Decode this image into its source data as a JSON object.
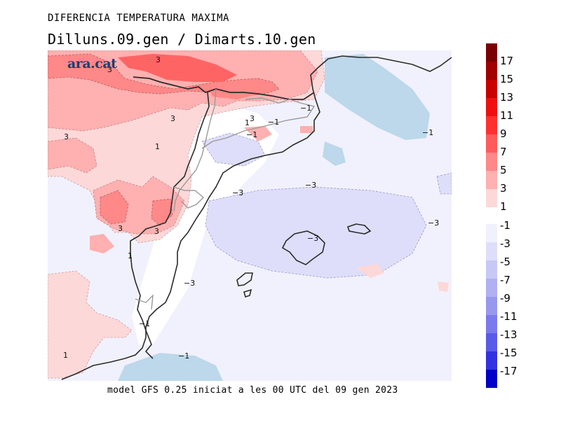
{
  "header": {
    "title": "DIFERENCIA TEMPERATURA MAXIMA",
    "subtitle": "Dilluns.09.gen / Dimarts.10.gen"
  },
  "footer": {
    "text": "model GFS 0.25 iniciat a les 00 UTC del 09 gen 2023"
  },
  "logo": {
    "text": "ara.cat"
  },
  "legend": {
    "warm": [
      {
        "label": "17",
        "color": "#7a0000"
      },
      {
        "label": "15",
        "color": "#a00000"
      },
      {
        "label": "13",
        "color": "#c80000"
      },
      {
        "label": "11",
        "color": "#ee1010"
      },
      {
        "label": "9",
        "color": "#ff3030"
      },
      {
        "label": "7",
        "color": "#ff5b5b"
      },
      {
        "label": "5",
        "color": "#ff8888"
      },
      {
        "label": "3",
        "color": "#ffb0b0"
      },
      {
        "label": "1",
        "color": "#fdd8d8"
      }
    ],
    "cold": [
      {
        "label": "-1",
        "color": "#f1f1fd"
      },
      {
        "label": "-3",
        "color": "#dedefa"
      },
      {
        "label": "-5",
        "color": "#c8c8f6"
      },
      {
        "label": "-7",
        "color": "#b0b0f2"
      },
      {
        "label": "-9",
        "color": "#9898ee"
      },
      {
        "label": "-11",
        "color": "#7a7aec"
      },
      {
        "label": "-13",
        "color": "#5a5ae8"
      },
      {
        "label": "-15",
        "color": "#3232e0"
      },
      {
        "label": "-17",
        "color": "#1010d0"
      }
    ],
    "extra": [
      {
        "color": "#0000b0"
      }
    ]
  },
  "map": {
    "colors": {
      "white": "#ffffff",
      "lightpink": "#fdd8d8",
      "pink": "#ffb0b0",
      "red": "#ff8888",
      "deepred": "#ff6464",
      "lavender": "#dedefa",
      "pale": "#f1f1fd",
      "lightblue": "#bcd8ea"
    },
    "contour_labels": [
      {
        "id": "l1",
        "text": "3"
      },
      {
        "id": "l2",
        "text": "3"
      },
      {
        "id": "l3",
        "text": "3"
      },
      {
        "id": "l4",
        "text": "1"
      },
      {
        "id": "l5",
        "text": "1"
      },
      {
        "id": "l6",
        "text": "3"
      },
      {
        "id": "l7",
        "text": "−1"
      },
      {
        "id": "l8",
        "text": "−1"
      },
      {
        "id": "l9",
        "text": "−1"
      },
      {
        "id": "l10",
        "text": "−1"
      },
      {
        "id": "l11",
        "text": "−3"
      },
      {
        "id": "l12",
        "text": "−3"
      },
      {
        "id": "l13",
        "text": "3"
      },
      {
        "id": "l14",
        "text": "3"
      },
      {
        "id": "l15",
        "text": "−3"
      },
      {
        "id": "l16",
        "text": "1"
      },
      {
        "id": "l17",
        "text": "−3"
      },
      {
        "id": "l18",
        "text": "−3"
      },
      {
        "id": "l19",
        "text": "−1"
      },
      {
        "id": "l20",
        "text": "1"
      },
      {
        "id": "l21",
        "text": "−1"
      },
      {
        "id": "l22",
        "text": "3"
      }
    ]
  }
}
